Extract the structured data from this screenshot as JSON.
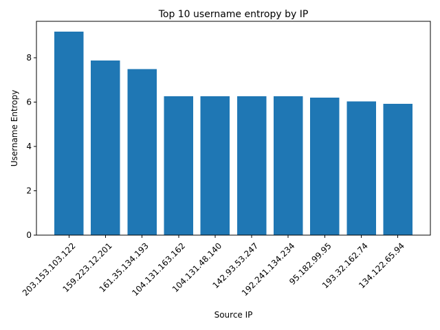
{
  "chart_data": {
    "type": "bar",
    "title": "Top 10 username entropy by IP",
    "xlabel": "Source IP",
    "ylabel": "Username Entropy",
    "categories": [
      "203.153.103.122",
      "159.223.12.201",
      "161.35.134.193",
      "104.131.163.162",
      "104.131.48.140",
      "142.93.53.247",
      "192.241.134.234",
      "95.182.99.95",
      "193.32.162.74",
      "134.122.65.94"
    ],
    "values": [
      9.19,
      7.88,
      7.5,
      6.27,
      6.27,
      6.27,
      6.27,
      6.2,
      6.04,
      5.92
    ],
    "ylim": [
      0,
      9.65
    ],
    "yticks": [
      0,
      2,
      4,
      6,
      8
    ],
    "grid": false,
    "bar_color": "#1f77b4"
  }
}
